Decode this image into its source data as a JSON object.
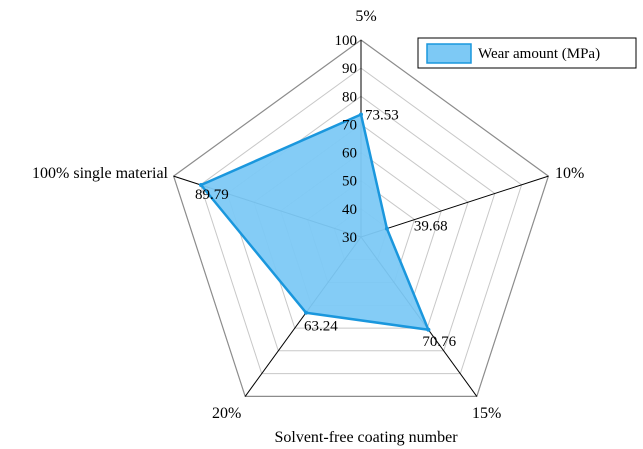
{
  "chart_data": {
    "type": "radar",
    "categories": [
      "5%",
      "10%",
      "15%",
      "20%",
      "100% single material"
    ],
    "series": [
      {
        "name": "Wear amount (MPa)",
        "values": [
          73.53,
          39.68,
          70.76,
          63.24,
          89.79
        ],
        "fill": "#7dc9f5",
        "stroke": "#1a97dd"
      }
    ],
    "data_labels": [
      "73.53",
      "39.68",
      "70.76",
      "63.24",
      "89.79"
    ],
    "r_range": [
      30,
      100
    ],
    "ticks": [
      30,
      40,
      50,
      60,
      70,
      80,
      90,
      100
    ],
    "tick_labels": [
      "30",
      "40",
      "50",
      "60",
      "70",
      "80",
      "90",
      "100"
    ],
    "xlabel": "Solvent-free coating number",
    "legend_position": "top-right",
    "grid": true
  }
}
